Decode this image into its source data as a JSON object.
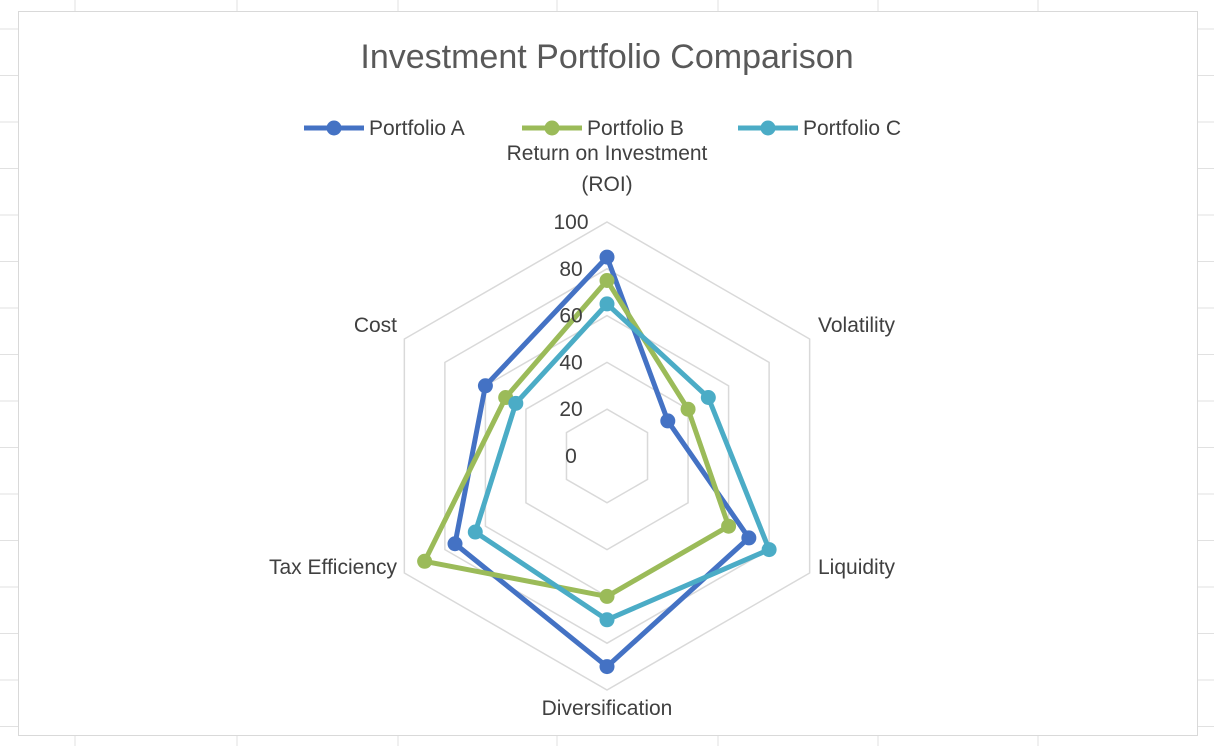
{
  "chart_data": {
    "type": "radar",
    "title": "Investment Portfolio Comparison",
    "axes": [
      "Return on Investment (ROI)",
      "Volatility",
      "Liquidity",
      "Diversification",
      "Tax Efficiency",
      "Cost"
    ],
    "axis_label_lines": [
      [
        "Return on Investment",
        "(ROI)"
      ],
      [
        "Volatility"
      ],
      [
        "Liquidity"
      ],
      [
        "Diversification"
      ],
      [
        "Tax Efficiency"
      ],
      [
        "Cost"
      ]
    ],
    "r_range": [
      0,
      100
    ],
    "r_ticks": [
      0,
      20,
      40,
      60,
      80,
      100
    ],
    "grid": true,
    "legend_position": "top",
    "series": [
      {
        "name": "Portfolio A",
        "color": "#4472c4",
        "values": [
          85,
          30,
          70,
          90,
          75,
          60
        ]
      },
      {
        "name": "Portfolio B",
        "color": "#9bbb59",
        "values": [
          75,
          40,
          60,
          60,
          90,
          50
        ]
      },
      {
        "name": "Portfolio C",
        "color": "#4bacc6",
        "values": [
          65,
          50,
          80,
          70,
          65,
          45
        ]
      }
    ]
  },
  "colors": {
    "grid": "#d9d9d9",
    "text": "#404040",
    "title": "#595959",
    "sheet_grid": "#e1e1e1"
  }
}
